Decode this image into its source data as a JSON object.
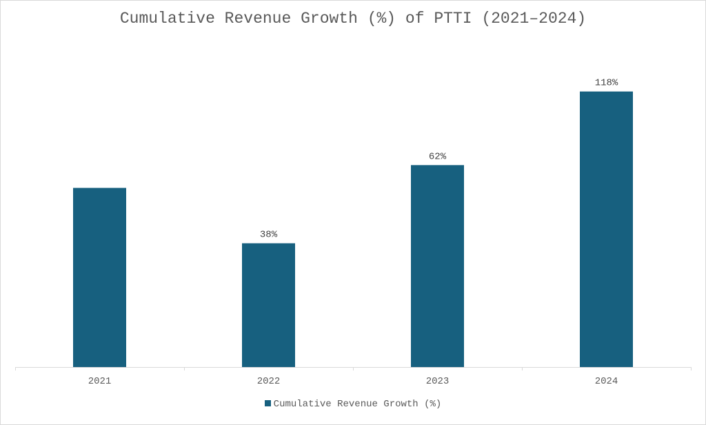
{
  "chart_data": {
    "type": "bar",
    "title": "Cumulative Revenue Growth (%) of PTTI (2021–2024)",
    "categories": [
      "2021",
      "2022",
      "2023",
      "2024"
    ],
    "series": [
      {
        "name": "Cumulative Revenue Growth (%)",
        "values": [
          55,
          38,
          62,
          118
        ],
        "color": "#17607f"
      }
    ],
    "data_labels": [
      "",
      "38%",
      "62%",
      "118%"
    ],
    "xlabel": "",
    "ylabel": "",
    "ylim": [
      0,
      125
    ],
    "grid": false,
    "legend": "bottom"
  }
}
